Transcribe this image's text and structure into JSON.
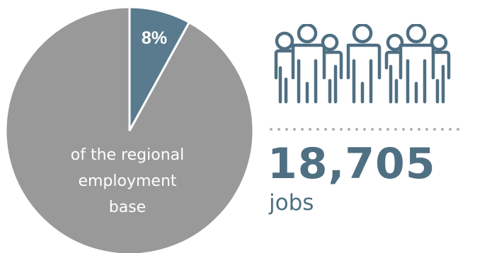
{
  "chart_data": {
    "type": "pie",
    "slices": [
      {
        "label": "8%",
        "value": 8,
        "color": "#5a7b8e"
      },
      {
        "label": "",
        "value": 92,
        "color": "#999999"
      }
    ],
    "center_caption": [
      "of the regional",
      "employment",
      "base"
    ]
  },
  "stat": {
    "value": "18,705",
    "unit": "jobs"
  },
  "icons": {
    "people": "group-of-people-icon"
  },
  "colors": {
    "accent": "#4f6f82",
    "slice_highlight": "#5a7b8e",
    "slice_rest": "#999999",
    "dots": "#b0b0b0",
    "caption_text": "#ffffff"
  }
}
